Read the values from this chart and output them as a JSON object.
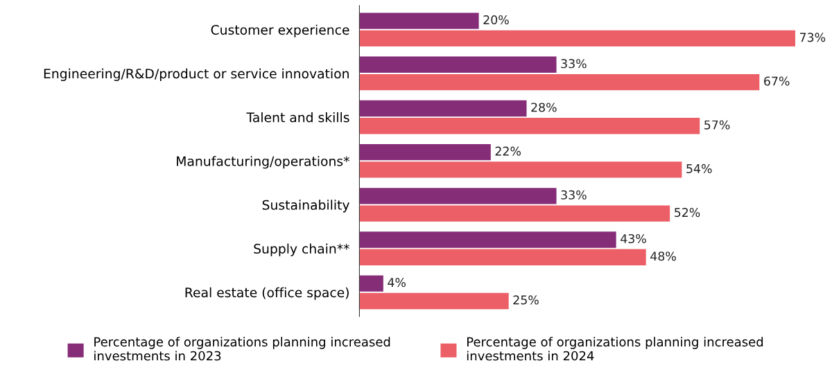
{
  "chart_data": {
    "type": "bar",
    "orientation": "horizontal",
    "categories": [
      "Customer experience",
      "Engineering/R&D/product or service innovation",
      "Talent and skills",
      "Manufacturing/operations*",
      "Sustainability",
      "Supply chain**",
      "Real estate (office space)"
    ],
    "series": [
      {
        "name": "Percentage of organizations planning increased\ninvestments in 2023",
        "color": "#862d78",
        "values": [
          20,
          33,
          28,
          22,
          33,
          43,
          4
        ],
        "value_labels": [
          "20%",
          "33%",
          "28%",
          "22%",
          "33%",
          "43%",
          "4%"
        ]
      },
      {
        "name": "Percentage of organizations planning increased\ninvestments in 2024",
        "color": "#ec5f67",
        "values": [
          73,
          67,
          57,
          54,
          52,
          48,
          25
        ],
        "value_labels": [
          "73%",
          "67%",
          "57%",
          "54%",
          "52%",
          "48%",
          "25%"
        ]
      }
    ],
    "tick_labels": "y",
    "grid": false,
    "legend": "bottom"
  }
}
